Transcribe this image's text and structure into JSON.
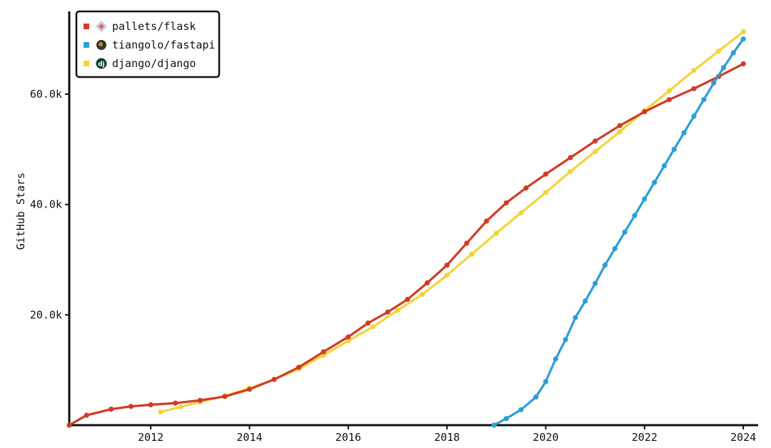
{
  "chart_data": {
    "type": "line",
    "title": "",
    "xlabel": "",
    "ylabel": "GitHub Stars",
    "xlim": [
      2010.35,
      2024.2
    ],
    "ylim": [
      0,
      75000
    ],
    "x_ticks": [
      2012,
      2014,
      2016,
      2018,
      2020,
      2022,
      2024
    ],
    "x_tick_labels": [
      "2012",
      "2014",
      "2016",
      "2018",
      "2020",
      "2022",
      "2024"
    ],
    "y_ticks": [
      20000,
      40000,
      60000
    ],
    "y_tick_labels": [
      "20.0k",
      "40.0k",
      "60.0k"
    ],
    "grid": false,
    "legend_position": "top-left",
    "series": [
      {
        "name": "pallets/flask",
        "color": "#d13b26",
        "icon": "pallets-avatar-icon",
        "x": [
          2010.35,
          2010.7,
          2011.2,
          2011.6,
          2012.0,
          2012.5,
          2013.0,
          2013.5,
          2014.0,
          2014.5,
          2015.0,
          2015.5,
          2016.0,
          2016.4,
          2016.8,
          2017.2,
          2017.6,
          2018.0,
          2018.4,
          2018.8,
          2019.2,
          2019.6,
          2020.0,
          2020.5,
          2021.0,
          2021.5,
          2022.0,
          2022.5,
          2023.0,
          2023.5,
          2024.0
        ],
        "y": [
          0,
          1800,
          2900,
          3400,
          3700,
          4000,
          4500,
          5200,
          6500,
          8300,
          10500,
          13300,
          16000,
          18500,
          20500,
          22800,
          25800,
          29000,
          33000,
          37000,
          40300,
          43000,
          45500,
          48500,
          51500,
          54300,
          56800,
          59000,
          61000,
          63200,
          65500
        ]
      },
      {
        "name": "tiangolo/fastapi",
        "color": "#2c9ed8",
        "icon": "tiangolo-avatar-icon",
        "x": [
          2018.95,
          2019.2,
          2019.5,
          2019.8,
          2020.0,
          2020.2,
          2020.4,
          2020.6,
          2020.8,
          2021.0,
          2021.2,
          2021.4,
          2021.6,
          2021.8,
          2022.0,
          2022.2,
          2022.4,
          2022.6,
          2022.8,
          2023.0,
          2023.2,
          2023.4,
          2023.6,
          2023.8,
          2024.0
        ],
        "y": [
          0,
          1200,
          2800,
          5100,
          7900,
          12000,
          15500,
          19500,
          22500,
          25700,
          29000,
          32000,
          35000,
          38000,
          41000,
          44000,
          47000,
          50000,
          53000,
          56000,
          59000,
          62000,
          64800,
          67500,
          70000
        ]
      },
      {
        "name": "django/django",
        "color": "#f2d43a",
        "icon": "django-logo-icon",
        "x": [
          2012.2,
          2012.6,
          2013.0,
          2013.5,
          2014.0,
          2014.5,
          2015.0,
          2015.5,
          2016.0,
          2016.5,
          2017.0,
          2017.5,
          2018.0,
          2018.5,
          2019.0,
          2019.5,
          2020.0,
          2020.5,
          2021.0,
          2021.5,
          2022.0,
          2022.5,
          2023.0,
          2023.5,
          2024.0
        ],
        "y": [
          2400,
          3300,
          4200,
          5300,
          6700,
          8300,
          10200,
          12700,
          15300,
          17800,
          20800,
          23700,
          27200,
          31000,
          34800,
          38500,
          42200,
          46000,
          49600,
          53200,
          57000,
          60600,
          64300,
          67800,
          71300
        ]
      }
    ]
  }
}
